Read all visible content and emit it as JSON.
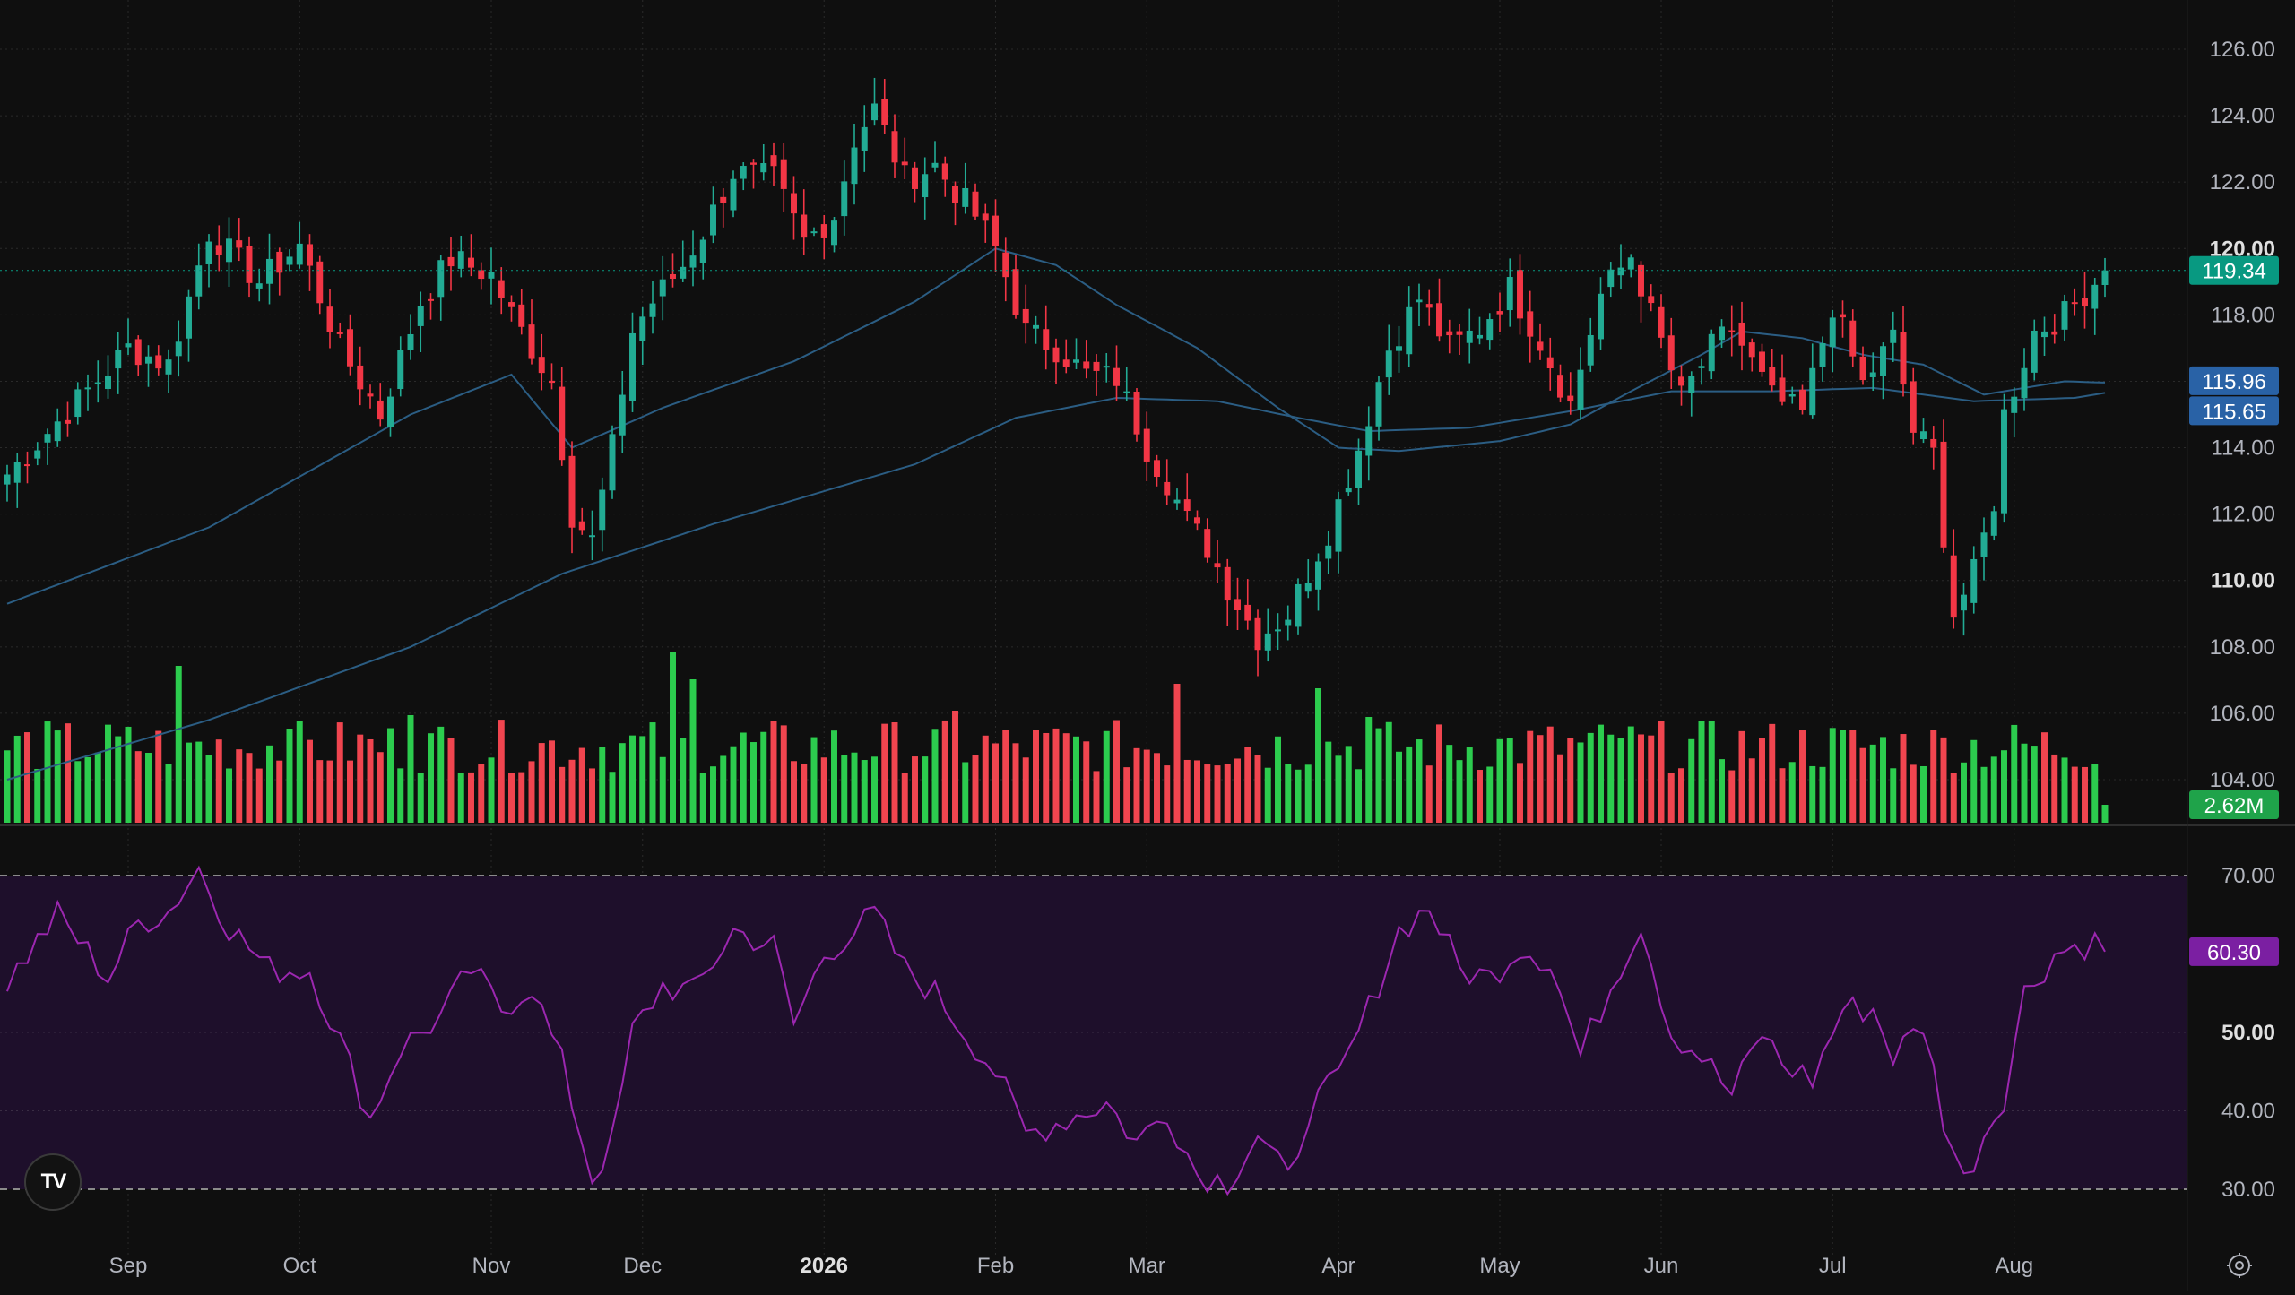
{
  "colors": {
    "background": "#0f0f0f",
    "grid": "#2a2a2a",
    "up": "#22ab94",
    "down": "#f23645",
    "vol_up": "#2ccc4e",
    "vol_down": "#f0454f",
    "ma": "#2b5d83",
    "rsi_line": "#9c27b0",
    "rsi_band": "#1e0f2b",
    "axis_text": "#b2b5be",
    "badge_price": "#089981",
    "badge_ma": "#2962a6",
    "badge_vol": "#1fa34a",
    "badge_rsi": "#7b1fa2"
  },
  "badges": {
    "price": "119.34",
    "ma_fast": "115.96",
    "ma_slow": "115.65",
    "volume": "2.62M",
    "rsi": "60.30"
  },
  "logo": {
    "text": "TV"
  },
  "icons": {
    "settings": "settings-gear-icon",
    "logo": "tradingview-logo-icon"
  },
  "chart_data": {
    "type": "candlestick",
    "price_axis": {
      "range": [
        103,
        127
      ],
      "ticks": [
        "126.00",
        "124.00",
        "122.00",
        "120.00",
        "118.00",
        "116.00",
        "114.00",
        "112.00",
        "110.00",
        "108.00",
        "106.00",
        "104.00"
      ],
      "bold_ticks": [
        "120.00",
        "110.00"
      ]
    },
    "rsi_axis": {
      "range": [
        28,
        73
      ],
      "ticks": [
        "70.00",
        "50.00",
        "40.00",
        "30.00"
      ],
      "bold_ticks": [
        "50.00"
      ],
      "band": [
        30,
        70
      ]
    },
    "time_axis": {
      "labels": [
        "Sep",
        "Oct",
        "Nov",
        "Dec",
        "2026",
        "Feb",
        "Mar",
        "Apr",
        "May",
        "Jun",
        "Jul",
        "Aug"
      ],
      "label_positions": [
        12,
        29,
        48,
        63,
        81,
        98,
        113,
        132,
        148,
        164,
        181,
        199
      ],
      "bold_labels": [
        "2026"
      ],
      "total_bars": 209
    },
    "close_anchors": [
      [
        0,
        113.2
      ],
      [
        6,
        115.1
      ],
      [
        12,
        117.0
      ],
      [
        16,
        116.5
      ],
      [
        20,
        120.5
      ],
      [
        25,
        119.0
      ],
      [
        29,
        120.1
      ],
      [
        33,
        117.0
      ],
      [
        37,
        115.0
      ],
      [
        41,
        118.4
      ],
      [
        44,
        119.7
      ],
      [
        48,
        119.2
      ],
      [
        50,
        118.0
      ],
      [
        54,
        116.0
      ],
      [
        56,
        112.0
      ],
      [
        58,
        111.2
      ],
      [
        60,
        114.0
      ],
      [
        62,
        117.5
      ],
      [
        64,
        118.4
      ],
      [
        67,
        119.5
      ],
      [
        69,
        120.5
      ],
      [
        72,
        122.3
      ],
      [
        76,
        122.1
      ],
      [
        79,
        120.2
      ],
      [
        82,
        121.0
      ],
      [
        84,
        123.3
      ],
      [
        86,
        124.2
      ],
      [
        89,
        122.1
      ],
      [
        92,
        122.5
      ],
      [
        96,
        121.0
      ],
      [
        98,
        120.0
      ],
      [
        101,
        117.5
      ],
      [
        104,
        117.0
      ],
      [
        107,
        116.2
      ],
      [
        110,
        116.1
      ],
      [
        113,
        114.0
      ],
      [
        115,
        113.0
      ],
      [
        117,
        111.8
      ],
      [
        119,
        111.0
      ],
      [
        121,
        109.8
      ],
      [
        124,
        108.3
      ],
      [
        127,
        109.0
      ],
      [
        131,
        111.5
      ],
      [
        134,
        114.0
      ],
      [
        137,
        117.0
      ],
      [
        140,
        118.5
      ],
      [
        143,
        117.0
      ],
      [
        146,
        117.6
      ],
      [
        149,
        118.8
      ],
      [
        152,
        117.2
      ],
      [
        155,
        115.3
      ],
      [
        158,
        118.6
      ],
      [
        161,
        119.8
      ],
      [
        163,
        118.0
      ],
      [
        166,
        115.5
      ],
      [
        169,
        117.0
      ],
      [
        171,
        117.6
      ],
      [
        175,
        115.5
      ],
      [
        178,
        115.0
      ],
      [
        181,
        118.3
      ],
      [
        184,
        115.9
      ],
      [
        187,
        117.3
      ],
      [
        189,
        114.5
      ],
      [
        191,
        113.8
      ],
      [
        193,
        109.0
      ],
      [
        195,
        110.2
      ],
      [
        197,
        112.4
      ],
      [
        198,
        115.0
      ],
      [
        201,
        117.5
      ],
      [
        204,
        118.0
      ],
      [
        208,
        119.34
      ]
    ],
    "rsi_anchors": [
      [
        0,
        56.5
      ],
      [
        5,
        65.0
      ],
      [
        10,
        57.0
      ],
      [
        13,
        64.0
      ],
      [
        16,
        65.5
      ],
      [
        19,
        71.0
      ],
      [
        22,
        63.5
      ],
      [
        26,
        58.0
      ],
      [
        30,
        58.0
      ],
      [
        33,
        49.0
      ],
      [
        36,
        39.0
      ],
      [
        39,
        48.0
      ],
      [
        43,
        52.0
      ],
      [
        46,
        58.0
      ],
      [
        49,
        53.0
      ],
      [
        52,
        56.0
      ],
      [
        55,
        46.0
      ],
      [
        58,
        31.5
      ],
      [
        60,
        36.0
      ],
      [
        62,
        50.0
      ],
      [
        65,
        56.0
      ],
      [
        68,
        55.0
      ],
      [
        72,
        63.0
      ],
      [
        76,
        61.0
      ],
      [
        78,
        51.0
      ],
      [
        81,
        60.0
      ],
      [
        86,
        65.0
      ],
      [
        89,
        58.0
      ],
      [
        92,
        55.0
      ],
      [
        95,
        50.0
      ],
      [
        98,
        45.0
      ],
      [
        101,
        37.0
      ],
      [
        105,
        39.0
      ],
      [
        109,
        41.0
      ],
      [
        112,
        36.0
      ],
      [
        115,
        40.0
      ],
      [
        118,
        32.0
      ],
      [
        121,
        31.0
      ],
      [
        124,
        37.0
      ],
      [
        127,
        31.0
      ],
      [
        129,
        40.0
      ],
      [
        132,
        44.0
      ],
      [
        135,
        53.0
      ],
      [
        138,
        63.0
      ],
      [
        141,
        66.0
      ],
      [
        144,
        58.0
      ],
      [
        147,
        57.0
      ],
      [
        150,
        61.0
      ],
      [
        153,
        59.0
      ],
      [
        156,
        47.0
      ],
      [
        159,
        56.0
      ],
      [
        162,
        64.0
      ],
      [
        165,
        50.0
      ],
      [
        168,
        47.0
      ],
      [
        171,
        42.0
      ],
      [
        174,
        50.0
      ],
      [
        176,
        46.0
      ],
      [
        179,
        44.0
      ],
      [
        182,
        53.0
      ],
      [
        185,
        53.0
      ],
      [
        187,
        47.0
      ],
      [
        190,
        51.0
      ],
      [
        192,
        39.0
      ],
      [
        194,
        31.0
      ],
      [
        196,
        37.0
      ],
      [
        198,
        42.0
      ],
      [
        200,
        55.0
      ],
      [
        203,
        60.0
      ],
      [
        205,
        61.0
      ],
      [
        207,
        61.5
      ],
      [
        208,
        60.3
      ]
    ],
    "ma_fast_anchors": [
      [
        0,
        109.3
      ],
      [
        20,
        111.6
      ],
      [
        40,
        115.0
      ],
      [
        50,
        116.2
      ],
      [
        56,
        114.0
      ],
      [
        65,
        115.2
      ],
      [
        78,
        116.6
      ],
      [
        90,
        118.4
      ],
      [
        98,
        120.0
      ],
      [
        104,
        119.5
      ],
      [
        110,
        118.3
      ],
      [
        118,
        117.0
      ],
      [
        126,
        115.2
      ],
      [
        132,
        114.0
      ],
      [
        138,
        113.9
      ],
      [
        148,
        114.2
      ],
      [
        155,
        114.7
      ],
      [
        161,
        115.7
      ],
      [
        168,
        116.8
      ],
      [
        172,
        117.5
      ],
      [
        178,
        117.3
      ],
      [
        184,
        116.8
      ],
      [
        190,
        116.5
      ],
      [
        196,
        115.6
      ],
      [
        204,
        116.0
      ],
      [
        208,
        115.96
      ]
    ],
    "ma_slow_anchors": [
      [
        0,
        104.0
      ],
      [
        20,
        105.8
      ],
      [
        40,
        108.0
      ],
      [
        55,
        110.2
      ],
      [
        70,
        111.7
      ],
      [
        90,
        113.5
      ],
      [
        100,
        114.9
      ],
      [
        110,
        115.5
      ],
      [
        120,
        115.4
      ],
      [
        128,
        114.9
      ],
      [
        135,
        114.5
      ],
      [
        145,
        114.6
      ],
      [
        155,
        115.1
      ],
      [
        165,
        115.7
      ],
      [
        175,
        115.7
      ],
      [
        185,
        115.8
      ],
      [
        195,
        115.4
      ],
      [
        205,
        115.5
      ],
      [
        208,
        115.65
      ]
    ],
    "volume_profile": "Daily volume bars; green for up days, red for down days; last bar 2.62M"
  }
}
